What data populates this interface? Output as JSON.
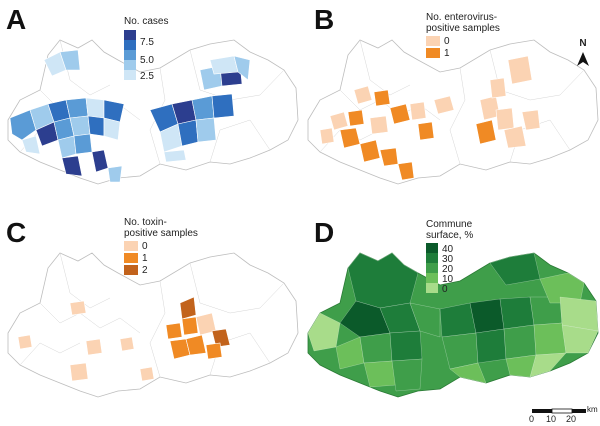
{
  "panels": {
    "a": {
      "letter": "A",
      "legend_title": "No. cases",
      "ticks": [
        "7.5",
        "5.0",
        "2.5"
      ],
      "ramp_colors": [
        "#2c3e8f",
        "#2f6fbf",
        "#5a9bd6",
        "#9fcbec",
        "#cfe6f6"
      ]
    },
    "b": {
      "letter": "B",
      "legend_title": [
        "No. enterovirus-",
        "positive samples"
      ],
      "items": [
        {
          "label": "0",
          "color": "#fbd3b3"
        },
        {
          "label": "1",
          "color": "#f08a24"
        }
      ],
      "north_label": "N"
    },
    "c": {
      "letter": "C",
      "legend_title": [
        "No. toxin-",
        "positive samples"
      ],
      "items": [
        {
          "label": "0",
          "color": "#fbd3b3"
        },
        {
          "label": "1",
          "color": "#f08a24"
        },
        {
          "label": "2",
          "color": "#c2631c"
        }
      ]
    },
    "d": {
      "letter": "D",
      "legend_title": [
        "Commune",
        "surface, %"
      ],
      "ticks": [
        "40",
        "30",
        "20",
        "10",
        "0"
      ],
      "ramp_colors": [
        "#0b5a2a",
        "#1e7d3a",
        "#3f9e4a",
        "#6cbf5a",
        "#a8dc8a"
      ],
      "scale_labels": [
        "0",
        "10",
        "20"
      ],
      "scale_unit": "km"
    }
  }
}
